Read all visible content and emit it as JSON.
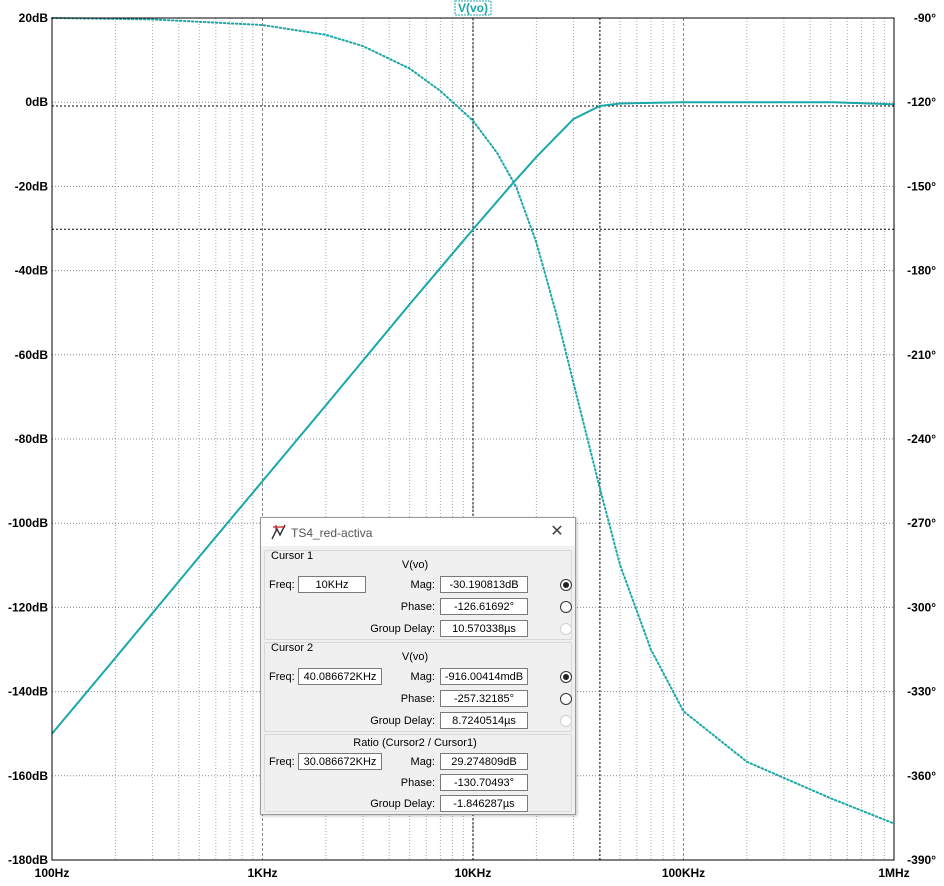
{
  "chart_data": {
    "type": "line",
    "trace_title": "V(vo)",
    "x_scale": "log",
    "xlim": [
      100,
      1000000
    ],
    "x_ticks": [
      "100Hz",
      "1KHz",
      "10KHz",
      "100KHz",
      "1MHz"
    ],
    "x_tick_values": [
      100,
      1000,
      10000,
      100000,
      1000000
    ],
    "ylim_left": [
      -180,
      20
    ],
    "y_ticks_left": [
      "20dB",
      "0dB",
      "-20dB",
      "-40dB",
      "-60dB",
      "-80dB",
      "-100dB",
      "-120dB",
      "-140dB",
      "-160dB",
      "-180dB"
    ],
    "y_tick_values_left": [
      20,
      0,
      -20,
      -40,
      -60,
      -80,
      -100,
      -120,
      -140,
      -160,
      -180
    ],
    "ylim_right": [
      -390,
      -90
    ],
    "y_ticks_right": [
      "-90°",
      "-120°",
      "-150°",
      "-180°",
      "-210°",
      "-240°",
      "-270°",
      "-300°",
      "-330°",
      "-360°",
      "-390°"
    ],
    "y_tick_values_right": [
      -90,
      -120,
      -150,
      -180,
      -210,
      -240,
      -270,
      -300,
      -330,
      -360,
      -390
    ],
    "grid": true,
    "trace_color": "#1aa8a8",
    "series": [
      {
        "role": "magnitude_db",
        "x": [
          100,
          200,
          500,
          1000,
          2000,
          5000,
          10000,
          15000,
          20000,
          30000,
          40000,
          50000,
          100000,
          200000,
          500000,
          1000000
        ],
        "y": [
          -150,
          -132,
          -108,
          -90,
          -72,
          -48,
          -30.2,
          -20,
          -13,
          -4,
          -0.9,
          -0.3,
          0,
          0,
          0,
          -0.5
        ]
      },
      {
        "role": "phase_deg",
        "x": [
          100,
          300,
          1000,
          2000,
          3000,
          5000,
          7000,
          10000,
          13000,
          16000,
          20000,
          25000,
          30000,
          40000,
          50000,
          70000,
          100000,
          200000,
          500000,
          1000000
        ],
        "y": [
          -90,
          -90.5,
          -92.5,
          -96,
          -100,
          -108,
          -116,
          -126.6,
          -138,
          -150,
          -170,
          -196,
          -220,
          -257.3,
          -285,
          -315,
          -337,
          -355,
          -368,
          -377
        ]
      }
    ],
    "cursor_lines": {
      "cursor1": {
        "x": 10000,
        "y_db": -30.190813
      },
      "cursor2": {
        "x": 40086.672,
        "y_db": -0.91600414
      }
    }
  },
  "dialog": {
    "title": "TS4_red-activa",
    "close": "✕",
    "cursor1": {
      "group": "Cursor 1",
      "trace": "V(vo)",
      "freq_label": "Freq:",
      "freq": "10KHz",
      "mag_label": "Mag:",
      "mag": "-30.190813dB",
      "phase_label": "Phase:",
      "phase": "-126.61692°",
      "gd_label": "Group Delay:",
      "gd": "10.570338µs"
    },
    "cursor2": {
      "group": "Cursor 2",
      "trace": "V(vo)",
      "freq_label": "Freq:",
      "freq": "40.086672KHz",
      "mag_label": "Mag:",
      "mag": "-916.00414mdB",
      "phase_label": "Phase:",
      "phase": "-257.32185°",
      "gd_label": "Group Delay:",
      "gd": "8.7240514µs"
    },
    "ratio": {
      "group": "Ratio (Cursor2 / Cursor1)",
      "freq_label": "Freq:",
      "freq": "30.086672KHz",
      "mag_label": "Mag:",
      "mag": "29.274809dB",
      "phase_label": "Phase:",
      "phase": "-130.70493°",
      "gd_label": "Group Delay:",
      "gd": "-1.846287µs"
    }
  }
}
